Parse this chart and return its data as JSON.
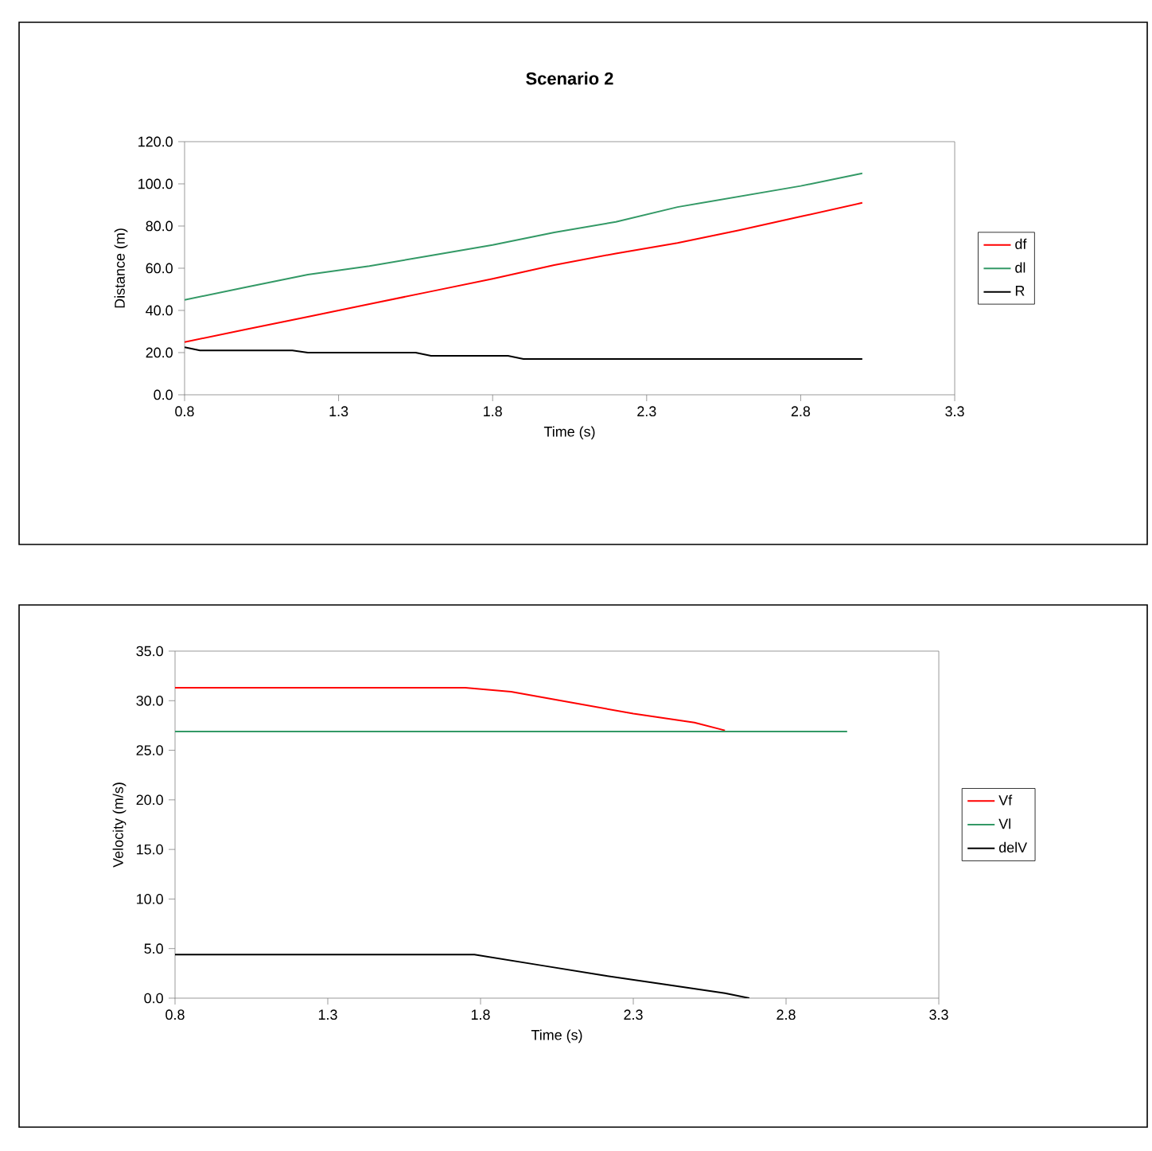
{
  "chart_data": [
    {
      "type": "line",
      "title": "Scenario 2",
      "xlabel": "Time (s)",
      "ylabel": "Distance (m)",
      "xlim": [
        0.8,
        3.3
      ],
      "xticks": [
        0.8,
        1.3,
        1.8,
        2.3,
        2.8,
        3.3
      ],
      "ylim": [
        0,
        120
      ],
      "yticks": [
        {
          "value": 0,
          "label": "0.0"
        },
        {
          "value": 20,
          "label": "20.0"
        },
        {
          "value": 40,
          "label": "40.0"
        },
        {
          "value": 60,
          "label": "60.0"
        },
        {
          "value": 80,
          "label": "80.0"
        },
        {
          "value": 100,
          "label": "100.0"
        },
        {
          "value": 120,
          "label": "120.0"
        }
      ],
      "grid": false,
      "legend": "right",
      "marker": "none",
      "line_style": "solid",
      "series": [
        {
          "name": "df",
          "color": "#ff0000",
          "x": [
            0.8,
            1.0,
            1.2,
            1.4,
            1.6,
            1.8,
            2.0,
            2.2,
            2.4,
            2.6,
            2.8,
            3.0
          ],
          "values": [
            25,
            31,
            37,
            43,
            49,
            55,
            61.5,
            67,
            72,
            78,
            84.5,
            91
          ]
        },
        {
          "name": "dl",
          "color": "#339966",
          "x": [
            0.8,
            1.0,
            1.2,
            1.4,
            1.6,
            1.8,
            2.0,
            2.2,
            2.4,
            2.6,
            2.8,
            3.0
          ],
          "values": [
            45,
            51,
            57,
            61,
            66,
            71,
            77,
            82,
            89,
            94,
            99,
            105
          ]
        },
        {
          "name": "R",
          "color": "#000000",
          "x": [
            0.8,
            0.85,
            1.15,
            1.2,
            1.55,
            1.6,
            1.85,
            1.9,
            3.0
          ],
          "values": [
            22.5,
            21,
            21,
            20,
            20,
            18.5,
            18.5,
            17,
            17
          ]
        }
      ]
    },
    {
      "type": "line",
      "xlabel": "Time (s)",
      "ylabel": "Velocity (m/s)",
      "xlim": [
        0.8,
        3.3
      ],
      "xticks": [
        0.8,
        1.3,
        1.8,
        2.3,
        2.8,
        3.3
      ],
      "ylim": [
        0,
        35
      ],
      "yticks": [
        {
          "value": 0,
          "label": "0.0"
        },
        {
          "value": 5,
          "label": "5.0"
        },
        {
          "value": 10,
          "label": "10.0"
        },
        {
          "value": 15,
          "label": "15.0"
        },
        {
          "value": 20,
          "label": "20.0"
        },
        {
          "value": 25,
          "label": "25.0"
        },
        {
          "value": 30,
          "label": "30.0"
        },
        {
          "value": 35,
          "label": "35.0"
        }
      ],
      "grid": false,
      "legend": "right",
      "marker": "none",
      "line_style": "solid",
      "series": [
        {
          "name": "Vf",
          "color": "#ff0000",
          "x": [
            0.8,
            1.75,
            1.9,
            2.1,
            2.3,
            2.5,
            2.6
          ],
          "values": [
            31.3,
            31.3,
            30.9,
            29.8,
            28.7,
            27.8,
            27.0
          ]
        },
        {
          "name": "Vl",
          "color": "#339966",
          "x": [
            0.8,
            3.0
          ],
          "values": [
            26.9,
            26.9
          ]
        },
        {
          "name": "delV",
          "color": "#000000",
          "x": [
            0.8,
            1.78,
            2.0,
            2.2,
            2.4,
            2.6,
            2.68
          ],
          "values": [
            4.4,
            4.4,
            3.3,
            2.3,
            1.4,
            0.5,
            0
          ]
        }
      ]
    }
  ]
}
